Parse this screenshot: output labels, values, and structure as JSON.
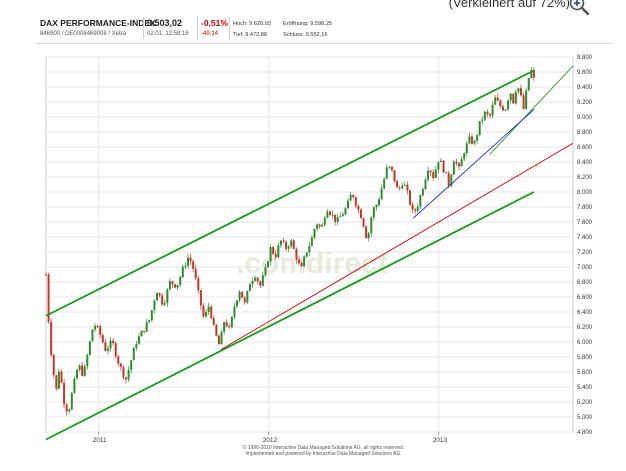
{
  "top": {
    "note": "(Verkleinert auf 72%)",
    "zoom_icon": "magnifier-plus-icon"
  },
  "header": {
    "name": "DAX PERFORMANCE-INDEX",
    "ids": "846900 / DE0008469008 / Xetra",
    "last": "9.503,02",
    "datetime": "02.01. 12:58:16",
    "pct": "-0,51%",
    "change": "-49,14",
    "hoch": "Hoch: 9.620,93",
    "tief": "Tief: 9.472,88",
    "eroeffnung": "Eröffnung: 9.598,25",
    "schluss": "Schluss: 9.552,16"
  },
  "watermark": ".comdirect",
  "copyright": {
    "line1": "© 1996-2010 Interactive Data Managed Solutions AG, all rights reserved.",
    "line2": "Implemented and powered by Interactive Data Managed Solutions AG."
  },
  "colors": {
    "up": "#2e8b2e",
    "down": "#c0392b",
    "channel": "#1a9a1a",
    "trend_blue": "#1f2fd0",
    "trend_red": "#cc0000",
    "grid": "#e6e6e6"
  },
  "chart_data": {
    "type": "candlestick",
    "title": "DAX PERFORMANCE-INDEX",
    "y_ticks": [
      "4.800",
      "5.000",
      "5.200",
      "5.400",
      "5.600",
      "5.800",
      "6.000",
      "6.200",
      "6.400",
      "6.600",
      "6.800",
      "7.000",
      "7.200",
      "7.400",
      "7.600",
      "7.800",
      "8.000",
      "8.200",
      "8.400",
      "8.600",
      "8.800",
      "9.000",
      "9.200",
      "9.400",
      "9.600",
      "9.800"
    ],
    "ylim": [
      4800,
      9800
    ],
    "x_ticks": [
      {
        "label": "2011",
        "t": 0.0
      },
      {
        "label": "2012",
        "t": 1.0
      },
      {
        "label": "2013",
        "t": 2.0
      }
    ],
    "x_range": [
      -0.31,
      2.79
    ],
    "grid": true,
    "price_path": [
      [
        -0.31,
        6900
      ],
      [
        -0.29,
        6100
      ],
      [
        -0.27,
        5650
      ],
      [
        -0.25,
        5350
      ],
      [
        -0.23,
        5700
      ],
      [
        -0.21,
        5250
      ],
      [
        -0.18,
        5050
      ],
      [
        -0.15,
        5400
      ],
      [
        -0.12,
        5700
      ],
      [
        -0.09,
        5550
      ],
      [
        -0.06,
        5900
      ],
      [
        -0.03,
        6250
      ],
      [
        0.0,
        6150
      ],
      [
        0.04,
        5900
      ],
      [
        0.08,
        6000
      ],
      [
        0.12,
        5700
      ],
      [
        0.16,
        5500
      ],
      [
        0.19,
        5750
      ],
      [
        0.22,
        6000
      ],
      [
        0.26,
        6150
      ],
      [
        0.3,
        6300
      ],
      [
        0.34,
        6700
      ],
      [
        0.38,
        6500
      ],
      [
        0.42,
        6800
      ],
      [
        0.46,
        6750
      ],
      [
        0.5,
        7000
      ],
      [
        0.53,
        7150
      ],
      [
        0.56,
        6950
      ],
      [
        0.59,
        6600
      ],
      [
        0.62,
        6300
      ],
      [
        0.65,
        6500
      ],
      [
        0.68,
        6150
      ],
      [
        0.71,
        5950
      ],
      [
        0.74,
        6300
      ],
      [
        0.77,
        6150
      ],
      [
        0.8,
        6500
      ],
      [
        0.83,
        6700
      ],
      [
        0.86,
        6500
      ],
      [
        0.89,
        6800
      ],
      [
        0.92,
        6900
      ],
      [
        0.95,
        6750
      ],
      [
        0.98,
        6950
      ],
      [
        1.01,
        7250
      ],
      [
        1.04,
        7150
      ],
      [
        1.07,
        7350
      ],
      [
        1.1,
        7250
      ],
      [
        1.13,
        7350
      ],
      [
        1.16,
        7150
      ],
      [
        1.19,
        6950
      ],
      [
        1.22,
        7200
      ],
      [
        1.25,
        7350
      ],
      [
        1.28,
        7600
      ],
      [
        1.31,
        7500
      ],
      [
        1.34,
        7800
      ],
      [
        1.37,
        7700
      ],
      [
        1.4,
        7600
      ],
      [
        1.43,
        7700
      ],
      [
        1.46,
        7800
      ],
      [
        1.49,
        8000
      ],
      [
        1.52,
        7800
      ],
      [
        1.55,
        7650
      ],
      [
        1.58,
        7350
      ],
      [
        1.61,
        7750
      ],
      [
        1.64,
        7850
      ],
      [
        1.67,
        8100
      ],
      [
        1.7,
        8350
      ],
      [
        1.73,
        8250
      ],
      [
        1.76,
        8000
      ],
      [
        1.79,
        8150
      ],
      [
        1.82,
        7950
      ],
      [
        1.85,
        7700
      ],
      [
        1.88,
        7850
      ],
      [
        1.91,
        8100
      ],
      [
        1.94,
        8350
      ],
      [
        1.97,
        8200
      ],
      [
        2.0,
        8450
      ],
      [
        2.03,
        8300
      ],
      [
        2.06,
        8100
      ],
      [
        2.09,
        8450
      ],
      [
        2.12,
        8300
      ],
      [
        2.15,
        8550
      ],
      [
        2.18,
        8700
      ],
      [
        2.21,
        8650
      ],
      [
        2.24,
        8900
      ],
      [
        2.27,
        9050
      ],
      [
        2.3,
        9000
      ],
      [
        2.33,
        9250
      ],
      [
        2.36,
        9150
      ],
      [
        2.39,
        9100
      ],
      [
        2.42,
        9350
      ],
      [
        2.44,
        9200
      ],
      [
        2.46,
        9450
      ],
      [
        2.48,
        9300
      ],
      [
        2.5,
        9100
      ],
      [
        2.52,
        9400
      ],
      [
        2.54,
        9650
      ],
      [
        2.56,
        9500
      ]
    ],
    "lines": [
      {
        "name": "channel-upper",
        "color": "green",
        "points": [
          [
            -0.31,
            6350
          ],
          [
            2.56,
            9620
          ]
        ]
      },
      {
        "name": "channel-lower",
        "color": "green",
        "points": [
          [
            -0.31,
            4700
          ],
          [
            2.56,
            8000
          ]
        ]
      },
      {
        "name": "trend-green-short",
        "color": "green",
        "points": [
          [
            2.3,
            8500
          ],
          [
            2.79,
            9680
          ]
        ]
      },
      {
        "name": "trend-blue",
        "color": "blue",
        "points": [
          [
            1.85,
            7650
          ],
          [
            2.56,
            9100
          ]
        ]
      },
      {
        "name": "trend-red",
        "color": "red",
        "points": [
          [
            0.72,
            5900
          ],
          [
            2.79,
            8650
          ]
        ]
      }
    ]
  }
}
